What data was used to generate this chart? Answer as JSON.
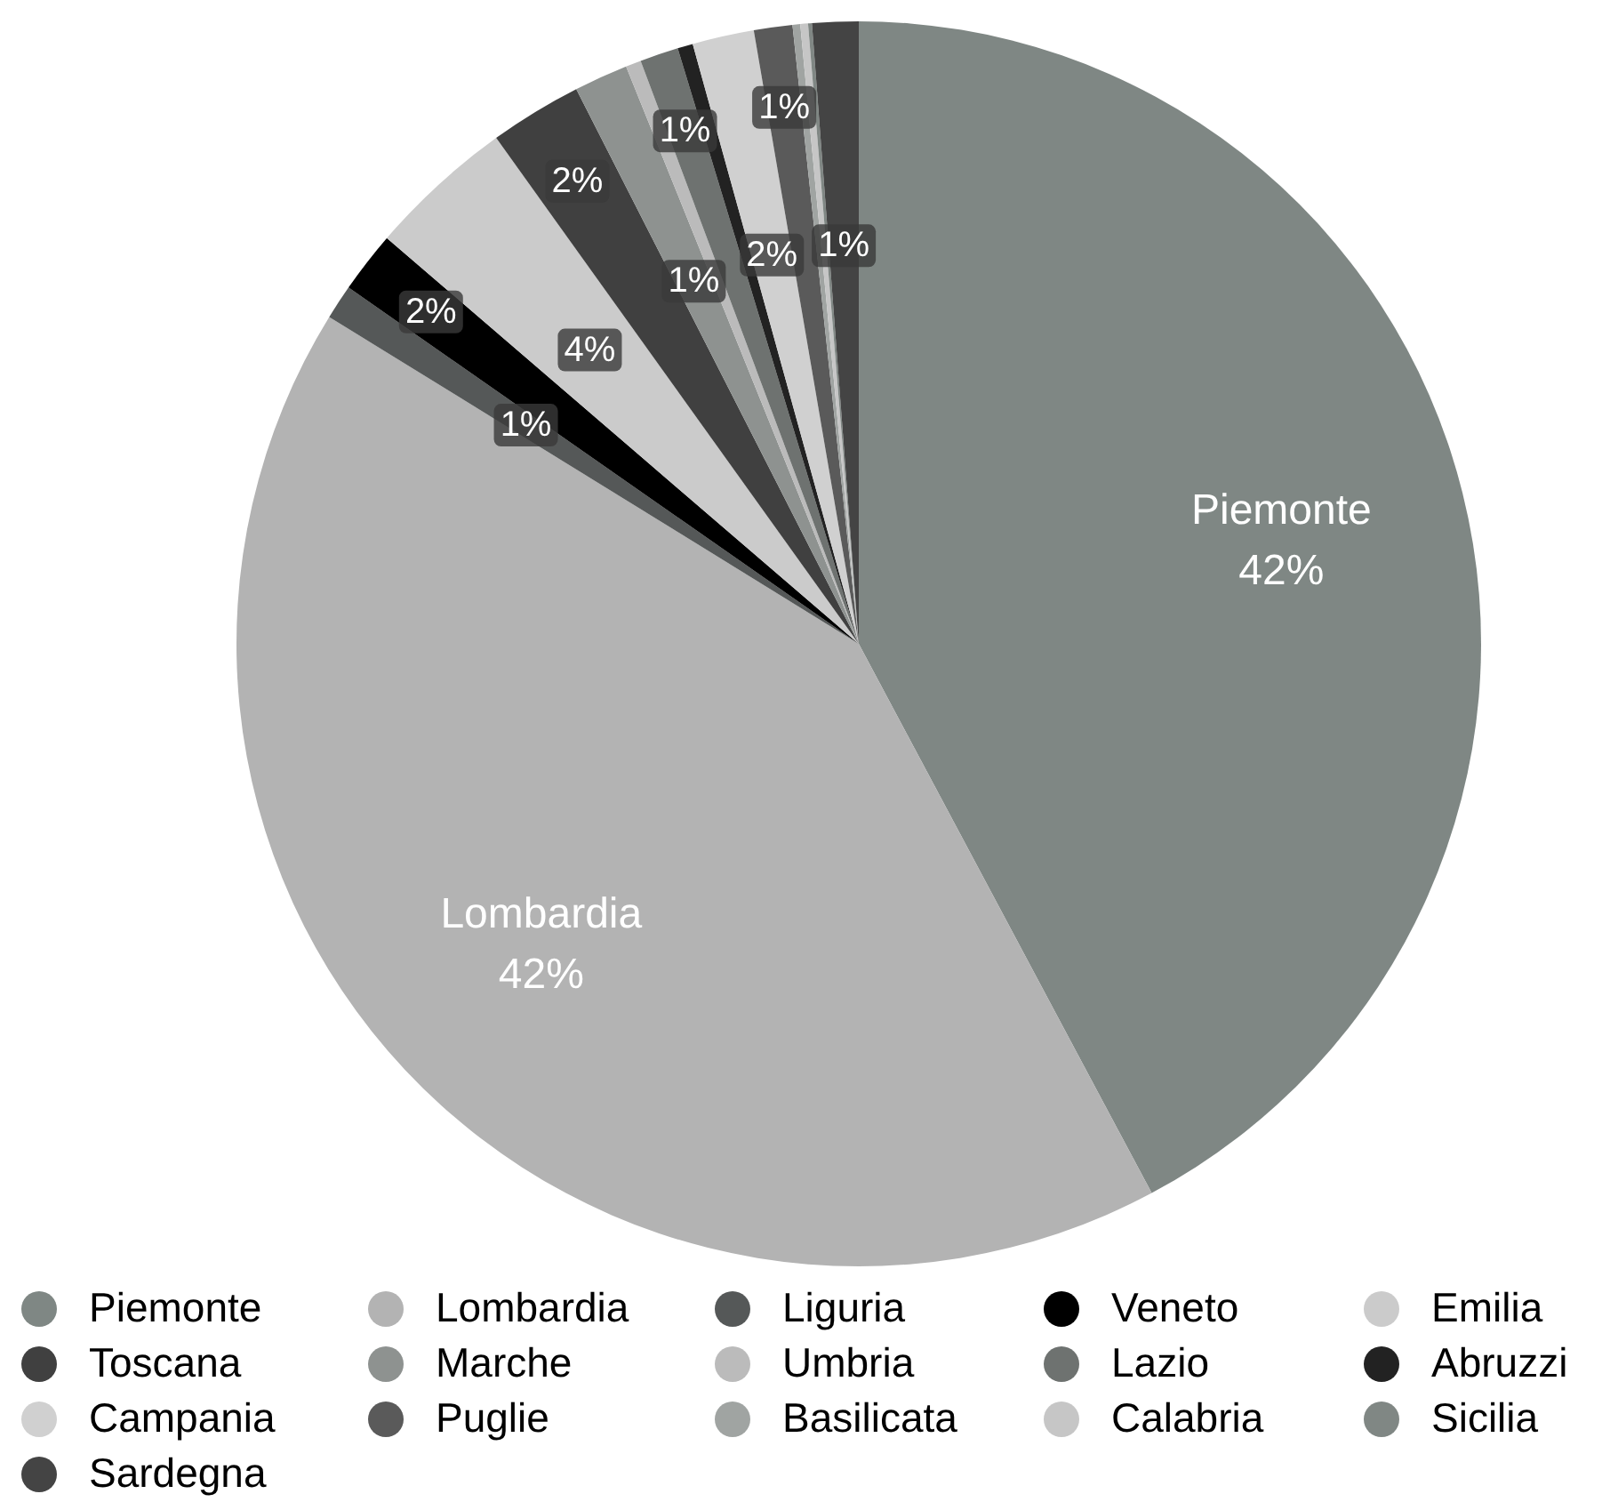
{
  "chart_data": {
    "type": "pie",
    "categories": [
      "Piemonte",
      "Lombardia",
      "Liguria",
      "Veneto",
      "Emilia",
      "Toscana",
      "Marche",
      "Umbria",
      "Lazio",
      "Abruzzi",
      "Campania",
      "Puglie",
      "Basilicata",
      "Calabria",
      "Sicilia",
      "Sardegna"
    ],
    "values": [
      42.2,
      41.6,
      0.9,
      1.6,
      3.8,
      2.4,
      1.4,
      0.4,
      1.0,
      0.4,
      1.6,
      1.0,
      0.2,
      0.2,
      0.1,
      1.2
    ],
    "colors": [
      "#7f8784",
      "#b3b3b3",
      "#555858",
      "#000000",
      "#cbcbcb",
      "#404040",
      "#8e9290",
      "#bbbbbb",
      "#6e7270",
      "#222222",
      "#d0d0d0",
      "#5a5a5a",
      "#a0a4a2",
      "#c6c6c6",
      "#808784",
      "#444444"
    ],
    "value_labels": [
      "Piemonte\n42%",
      "Lombardia\n42%",
      "1%",
      "2%",
      "4%",
      "2%",
      "1%",
      null,
      "1%",
      null,
      "2%",
      "1%",
      null,
      null,
      null,
      "1%"
    ],
    "legend": "bottom"
  }
}
